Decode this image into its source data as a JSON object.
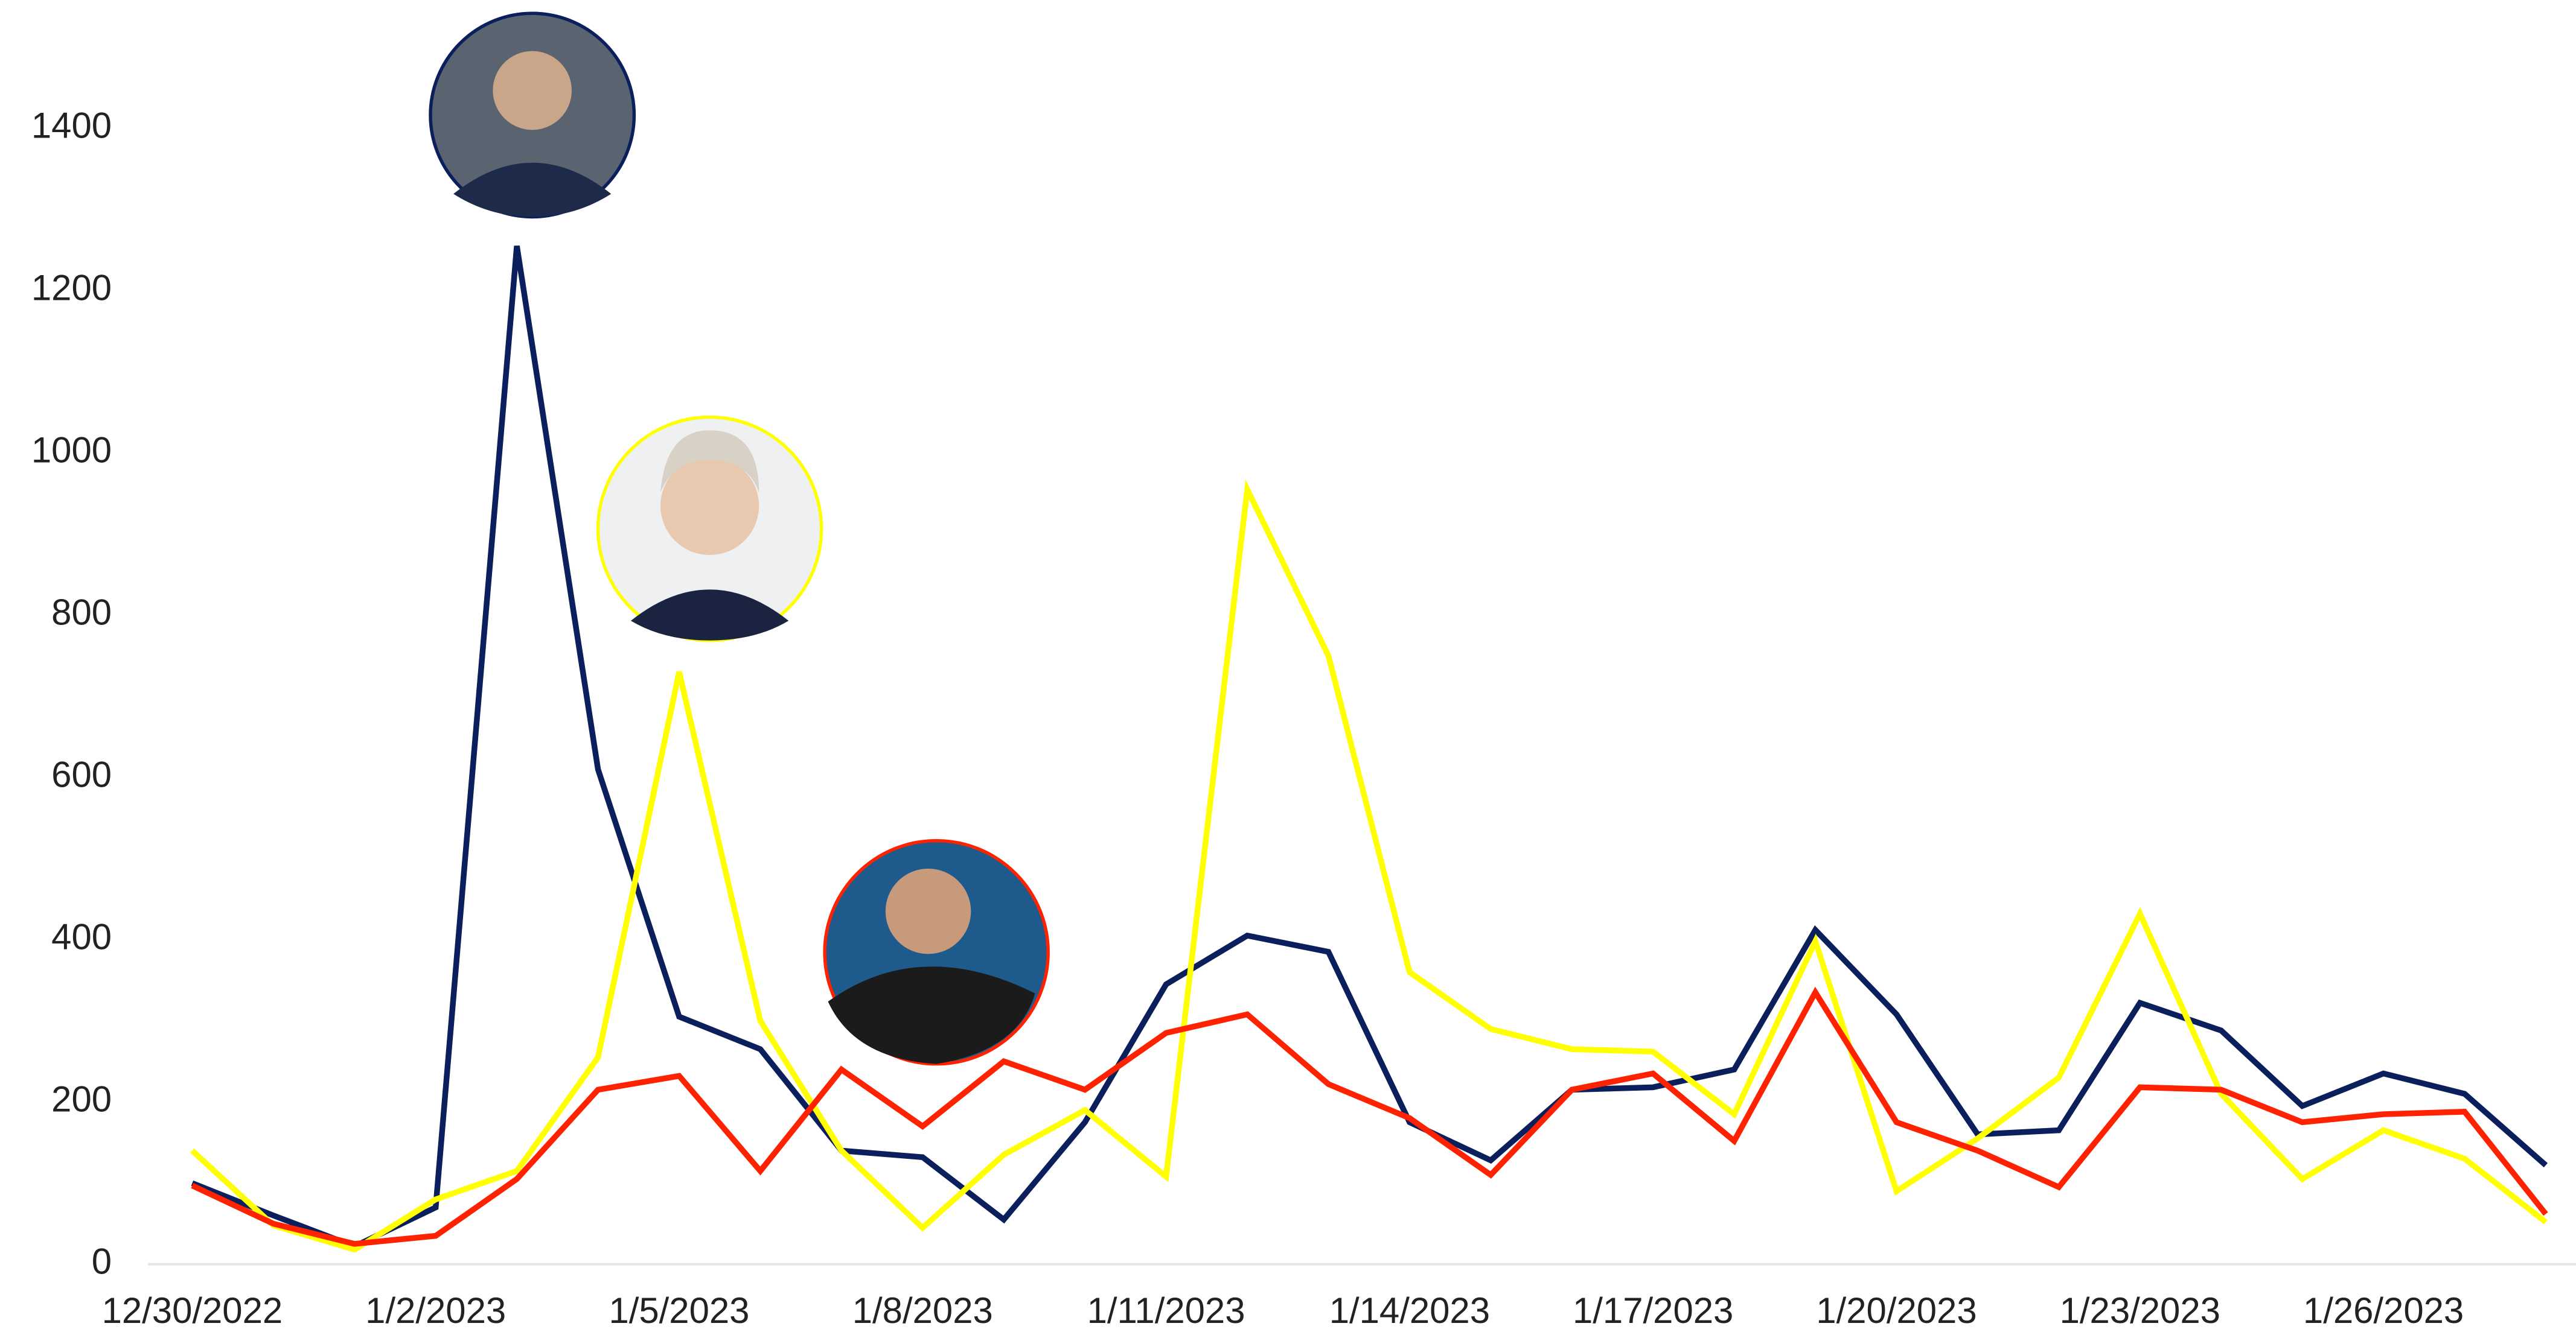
{
  "chart_data": {
    "type": "line",
    "categories": [
      "12/30/2022",
      null,
      null,
      "1/2/2023",
      null,
      null,
      "1/5/2023",
      null,
      null,
      "1/8/2023",
      null,
      null,
      "1/11/2023",
      null,
      null,
      "1/14/2023",
      null,
      null,
      "1/17/2023",
      null,
      null,
      "1/20/2023",
      null,
      null,
      "1/23/2023",
      null,
      null,
      "1/26/2023",
      null,
      null
    ],
    "series": [
      {
        "color": "#0b1f5c",
        "values": [
          100,
          60,
          22,
          70,
          1255,
          610,
          305,
          265,
          140,
          132,
          55,
          175,
          345,
          405,
          385,
          175,
          128,
          215,
          218,
          240,
          412,
          308,
          160,
          165,
          322,
          288,
          195,
          235,
          210,
          122
        ]
      },
      {
        "color": "#ff2200",
        "values": [
          97,
          50,
          25,
          35,
          105,
          215,
          232,
          115,
          240,
          170,
          250,
          215,
          285,
          308,
          222,
          180,
          110,
          215,
          235,
          152,
          335,
          175,
          140,
          95,
          218,
          215,
          175,
          185,
          188,
          62
        ]
      },
      {
        "color": "#ffff00",
        "values": [
          140,
          48,
          18,
          80,
          115,
          255,
          730,
          300,
          140,
          45,
          135,
          190,
          108,
          955,
          750,
          360,
          290,
          265,
          262,
          185,
          398,
          90,
          155,
          230,
          432,
          210,
          105,
          165,
          130,
          52
        ]
      }
    ],
    "ylim": [
      0,
      1400
    ],
    "yticks": [
      0,
      200,
      400,
      600,
      800,
      1000,
      1200,
      1400
    ]
  }
}
